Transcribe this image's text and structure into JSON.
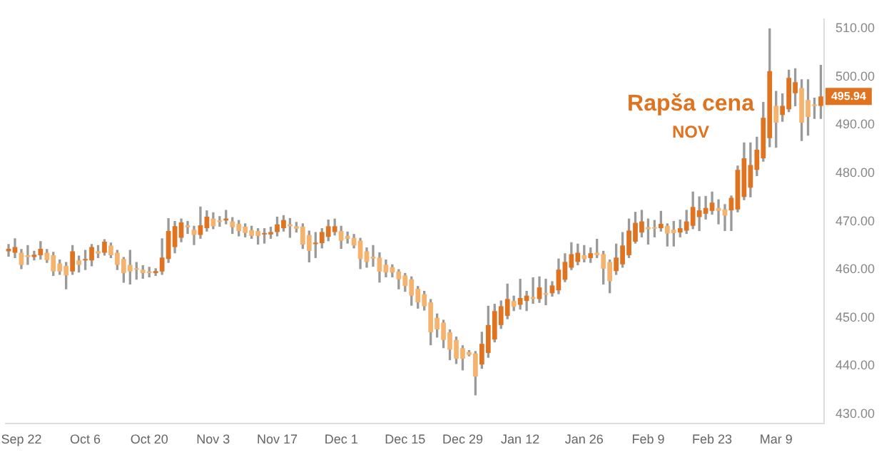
{
  "chart_data": {
    "type": "candlestick",
    "categories": [
      null,
      null,
      "Sep 22",
      null,
      null,
      null,
      null,
      null,
      null,
      null,
      null,
      null,
      "Oct 6",
      null,
      null,
      null,
      null,
      null,
      null,
      null,
      null,
      null,
      "Oct 20",
      null,
      null,
      null,
      null,
      null,
      null,
      null,
      null,
      null,
      "Nov 3",
      null,
      null,
      null,
      null,
      null,
      null,
      null,
      null,
      null,
      "Nov 17",
      null,
      null,
      null,
      null,
      null,
      null,
      null,
      null,
      null,
      "Dec 1",
      null,
      null,
      null,
      null,
      null,
      null,
      null,
      null,
      null,
      "Dec 15",
      null,
      null,
      null,
      null,
      null,
      null,
      null,
      null,
      "Dec 29",
      null,
      null,
      null,
      null,
      null,
      null,
      null,
      null,
      "Jan 12",
      null,
      null,
      null,
      null,
      null,
      null,
      null,
      null,
      null,
      "Jan 26",
      null,
      null,
      null,
      null,
      null,
      null,
      null,
      null,
      null,
      "Feb 9",
      null,
      null,
      null,
      null,
      null,
      null,
      null,
      null,
      null,
      "Feb 23",
      null,
      null,
      null,
      null,
      null,
      null,
      null,
      null,
      null,
      "Mar 9",
      null,
      null,
      null,
      null,
      null,
      null,
      null
    ],
    "ohlc": [
      [
        463.8,
        465.2,
        462.8,
        464.3
      ],
      [
        463.5,
        466.4,
        462.5,
        464.7
      ],
      [
        463.5,
        464.2,
        460.2,
        461
      ],
      [
        463,
        465,
        461.1,
        462.6
      ],
      [
        462.6,
        463.8,
        462,
        463.1
      ],
      [
        463,
        465.8,
        462.2,
        464.3
      ],
      [
        463.5,
        464.2,
        461.5,
        462
      ],
      [
        463,
        463.6,
        458.8,
        459.6
      ],
      [
        461.3,
        462,
        459,
        459.6
      ],
      [
        460.8,
        461.5,
        456,
        458.8
      ],
      [
        459.6,
        465,
        459,
        463.8
      ],
      [
        461.9,
        462.8,
        459.5,
        461
      ],
      [
        461.9,
        464,
        460,
        462.2
      ],
      [
        461.9,
        465.2,
        460.8,
        464.7
      ],
      [
        463.8,
        465,
        462.5,
        463.3
      ],
      [
        463.5,
        466.2,
        463,
        465.8
      ],
      [
        465,
        465.5,
        462.5,
        463
      ],
      [
        463.5,
        464,
        460,
        461
      ],
      [
        462.2,
        462.5,
        457.4,
        459.3
      ],
      [
        461,
        464,
        457,
        459.6
      ],
      [
        460.3,
        461.5,
        458,
        460
      ],
      [
        460,
        460.8,
        458.2,
        459.3
      ],
      [
        459.6,
        460.5,
        458.5,
        459.3
      ],
      [
        459.3,
        460.2,
        458.8,
        459.7
      ],
      [
        459.6,
        466.4,
        459,
        462.5
      ],
      [
        462.2,
        470.6,
        461.5,
        468
      ],
      [
        464.7,
        470,
        463.5,
        469
      ],
      [
        466.6,
        470.5,
        465.8,
        469.8
      ],
      [
        469.2,
        470,
        467.5,
        468.8
      ],
      [
        468.3,
        469,
        465.2,
        467.2
      ],
      [
        467.2,
        473,
        466.5,
        469.2
      ],
      [
        468.6,
        472.2,
        468,
        471
      ],
      [
        470.6,
        471.8,
        468.5,
        469
      ],
      [
        470.2,
        471,
        469,
        469.9
      ],
      [
        470.2,
        472.3,
        469.5,
        470.6
      ],
      [
        470,
        470.8,
        467.5,
        468.8
      ],
      [
        469.5,
        470.2,
        467,
        468
      ],
      [
        468.9,
        469.5,
        466.8,
        467.6
      ],
      [
        468.2,
        469,
        466.5,
        467
      ],
      [
        468,
        468.5,
        465.3,
        467
      ],
      [
        467.3,
        468.5,
        465.5,
        467.6
      ],
      [
        467.3,
        468.8,
        466.5,
        467.8
      ],
      [
        467.8,
        470.9,
        467,
        469.4
      ],
      [
        468.6,
        471.2,
        468,
        470.3
      ],
      [
        469.4,
        470.6,
        466.7,
        469
      ],
      [
        469,
        469.8,
        467.8,
        468.5
      ],
      [
        468.9,
        469.5,
        464.4,
        465.2
      ],
      [
        467.2,
        468,
        461.6,
        463.9
      ],
      [
        465.3,
        467.7,
        462.5,
        465.6
      ],
      [
        465.5,
        468.5,
        464.5,
        467.8
      ],
      [
        466.8,
        470.3,
        466,
        469
      ],
      [
        467.8,
        470.5,
        467.2,
        469
      ],
      [
        468,
        469,
        464.4,
        466
      ],
      [
        467,
        467.8,
        465.5,
        466.4
      ],
      [
        466.6,
        467.3,
        464.5,
        465
      ],
      [
        466,
        466.5,
        460.2,
        462.2
      ],
      [
        463.8,
        464.5,
        460.5,
        461.6
      ],
      [
        462.7,
        465,
        460.7,
        462.3
      ],
      [
        462.5,
        463.5,
        457.4,
        459.6
      ],
      [
        461,
        462,
        458.5,
        459.4
      ],
      [
        460.5,
        461,
        458.5,
        459.4
      ],
      [
        459.6,
        460,
        456,
        458
      ],
      [
        458.8,
        459.2,
        455.5,
        456.6
      ],
      [
        458,
        458.5,
        452.6,
        454.6
      ],
      [
        456,
        456.5,
        452,
        453.2
      ],
      [
        454.9,
        455.5,
        451.6,
        452.4
      ],
      [
        453.2,
        453.8,
        444.4,
        447
      ],
      [
        450,
        450.8,
        446,
        447.6
      ],
      [
        449,
        449.5,
        443.8,
        445.4
      ],
      [
        447,
        447.5,
        441.3,
        443.4
      ],
      [
        445.4,
        446,
        440.5,
        441.5
      ],
      [
        443.7,
        444.2,
        439.2,
        441.5
      ],
      [
        442.9,
        443.2,
        442.1,
        442.3
      ],
      [
        442.6,
        443,
        434,
        437.8
      ],
      [
        440.3,
        447,
        439.5,
        444.6
      ],
      [
        442.7,
        452.4,
        441.8,
        448.5
      ],
      [
        445.5,
        452.8,
        445,
        451.4
      ],
      [
        448.5,
        453.5,
        447.8,
        452.4
      ],
      [
        450.4,
        457,
        449.8,
        453.9
      ],
      [
        453.5,
        454.5,
        451.5,
        452.3
      ],
      [
        452.7,
        458,
        451.8,
        454.1
      ],
      [
        453.5,
        455.5,
        451.5,
        454.6
      ],
      [
        454.3,
        458.3,
        453,
        453.9
      ],
      [
        453.9,
        458.5,
        453.2,
        456.3
      ],
      [
        455.1,
        458,
        452.7,
        454.8
      ],
      [
        455.1,
        457.5,
        454.5,
        456.7
      ],
      [
        455.7,
        462.2,
        455,
        460
      ],
      [
        457.9,
        463.3,
        457.5,
        461.6
      ],
      [
        460.4,
        465.6,
        460,
        463.2
      ],
      [
        461.6,
        465.3,
        461,
        463.5
      ],
      [
        463,
        465,
        461.6,
        462.2
      ],
      [
        462.4,
        464.5,
        461.5,
        463.4
      ],
      [
        463.5,
        466.3,
        462.5,
        463
      ],
      [
        463.2,
        463.8,
        457,
        460.2
      ],
      [
        461.6,
        462,
        455.2,
        457.6
      ],
      [
        459.7,
        465.3,
        459,
        462.5
      ],
      [
        461.1,
        467.7,
        460.5,
        465
      ],
      [
        463,
        470.5,
        462.5,
        468.1
      ],
      [
        465.8,
        471.9,
        465.5,
        469.7
      ],
      [
        467.7,
        472.3,
        466.8,
        470
      ],
      [
        468.8,
        470.5,
        465.3,
        468.4
      ],
      [
        468.7,
        470.2,
        466.8,
        468.5
      ],
      [
        468.6,
        472.1,
        468,
        469.5
      ],
      [
        469.1,
        469.5,
        464.9,
        467.5
      ],
      [
        468.3,
        470,
        464.9,
        467.6
      ],
      [
        467.7,
        470.3,
        466.8,
        468.6
      ],
      [
        468.1,
        472.3,
        467.5,
        470
      ],
      [
        469.1,
        476.1,
        468.5,
        473
      ],
      [
        470.9,
        475.1,
        468.1,
        472.3
      ],
      [
        471.6,
        475.2,
        470.5,
        472.8
      ],
      [
        472.2,
        476.1,
        471.5,
        473.9
      ],
      [
        472.8,
        474.5,
        469.5,
        472.2
      ],
      [
        472.5,
        473.5,
        468.1,
        471.2
      ],
      [
        472.3,
        475.3,
        468.1,
        474.9
      ],
      [
        472.5,
        481.5,
        472,
        480.7
      ],
      [
        475.1,
        486.3,
        474.5,
        483.1
      ],
      [
        477,
        486.3,
        475.1,
        481.7
      ],
      [
        480.7,
        487.5,
        479.5,
        484.9
      ],
      [
        483.1,
        494.7,
        482.5,
        491.5
      ],
      [
        487.3,
        510,
        485.5,
        501.2
      ],
      [
        494,
        497,
        485.4,
        490.5
      ],
      [
        492.1,
        496.5,
        490.8,
        494
      ],
      [
        493.3,
        501.4,
        492.8,
        499.8
      ],
      [
        496.6,
        501.7,
        494,
        498.9
      ],
      [
        497.7,
        499.4,
        486.8,
        490.5
      ],
      [
        495.2,
        499.4,
        487.9,
        491.7
      ],
      [
        494.2,
        495.6,
        491.4,
        494
      ],
      [
        494,
        502.4,
        491.4,
        495.94
      ]
    ],
    "colors": [
      "#e0731f",
      "#e0731f",
      "#f6b36e",
      "#f6b36e",
      "#e0731f",
      "#e0731f",
      "#f6b36e",
      "#f6b36e",
      "#f6b36e",
      "#f6b36e",
      "#e0731f",
      "#f6b36e",
      "#e0731f",
      "#e0731f",
      "#f6b36e",
      "#e0731f",
      "#f6b36e",
      "#f6b36e",
      "#f6b36e",
      "#f6b36e",
      "#f6b36e",
      "#f6b36e",
      "#f6b36e",
      "#e0731f",
      "#e0731f",
      "#e0731f",
      "#e0731f",
      "#e0731f",
      "#f6b36e",
      "#f6b36e",
      "#e0731f",
      "#e0731f",
      "#f6b36e",
      "#f6b36e",
      "#e0731f",
      "#f6b36e",
      "#f6b36e",
      "#f6b36e",
      "#f6b36e",
      "#f6b36e",
      "#e0731f",
      "#e0731f",
      "#e0731f",
      "#e0731f",
      "#f6b36e",
      "#f6b36e",
      "#f6b36e",
      "#f6b36e",
      "#e0731f",
      "#e0731f",
      "#e0731f",
      "#e0731f",
      "#f6b36e",
      "#f6b36e",
      "#f6b36e",
      "#f6b36e",
      "#f6b36e",
      "#f6b36e",
      "#f6b36e",
      "#f6b36e",
      "#f6b36e",
      "#f6b36e",
      "#f6b36e",
      "#f6b36e",
      "#f6b36e",
      "#f6b36e",
      "#f6b36e",
      "#f6b36e",
      "#f6b36e",
      "#f6b36e",
      "#f6b36e",
      "#f6b36e",
      "#f6b36e",
      "#f6b36e",
      "#e0731f",
      "#e0731f",
      "#e0731f",
      "#e0731f",
      "#e0731f",
      "#f6b36e",
      "#e0731f",
      "#e0731f",
      "#f6b36e",
      "#e0731f",
      "#f6b36e",
      "#e0731f",
      "#e0731f",
      "#e0731f",
      "#e0731f",
      "#e0731f",
      "#f6b36e",
      "#e0731f",
      "#f6b36e",
      "#f6b36e",
      "#f6b36e",
      "#e0731f",
      "#e0731f",
      "#e0731f",
      "#e0731f",
      "#e0731f",
      "#f6b36e",
      "#f6b36e",
      "#e0731f",
      "#f6b36e",
      "#f6b36e",
      "#e0731f",
      "#e0731f",
      "#e0731f",
      "#e0731f",
      "#e0731f",
      "#e0731f",
      "#f6b36e",
      "#f6b36e",
      "#e0731f",
      "#e0731f",
      "#e0731f",
      "#e0731f",
      "#e0731f",
      "#e0731f",
      "#e0731f",
      "#f6b36e",
      "#e0731f",
      "#e0731f",
      "#e0731f",
      "#f6b36e",
      "#f6b36e",
      "#f6b36e",
      "#e0731f"
    ],
    "ylim": [
      428,
      512
    ],
    "yticks": [
      {
        "value": 430,
        "label": "430.00"
      },
      {
        "value": 440,
        "label": "440.00"
      },
      {
        "value": 450,
        "label": "450.00"
      },
      {
        "value": 460,
        "label": "460.00"
      },
      {
        "value": 470,
        "label": "470.00"
      },
      {
        "value": 480,
        "label": "480.00"
      },
      {
        "value": 490,
        "label": "490.00"
      },
      {
        "value": 500,
        "label": "500.00"
      },
      {
        "value": 510,
        "label": "510.00"
      }
    ],
    "grid": false,
    "legend": false,
    "annotations": [
      "Rapša cena",
      "NOV",
      {
        "text": "495.94",
        "y": 495.94
      }
    ]
  }
}
